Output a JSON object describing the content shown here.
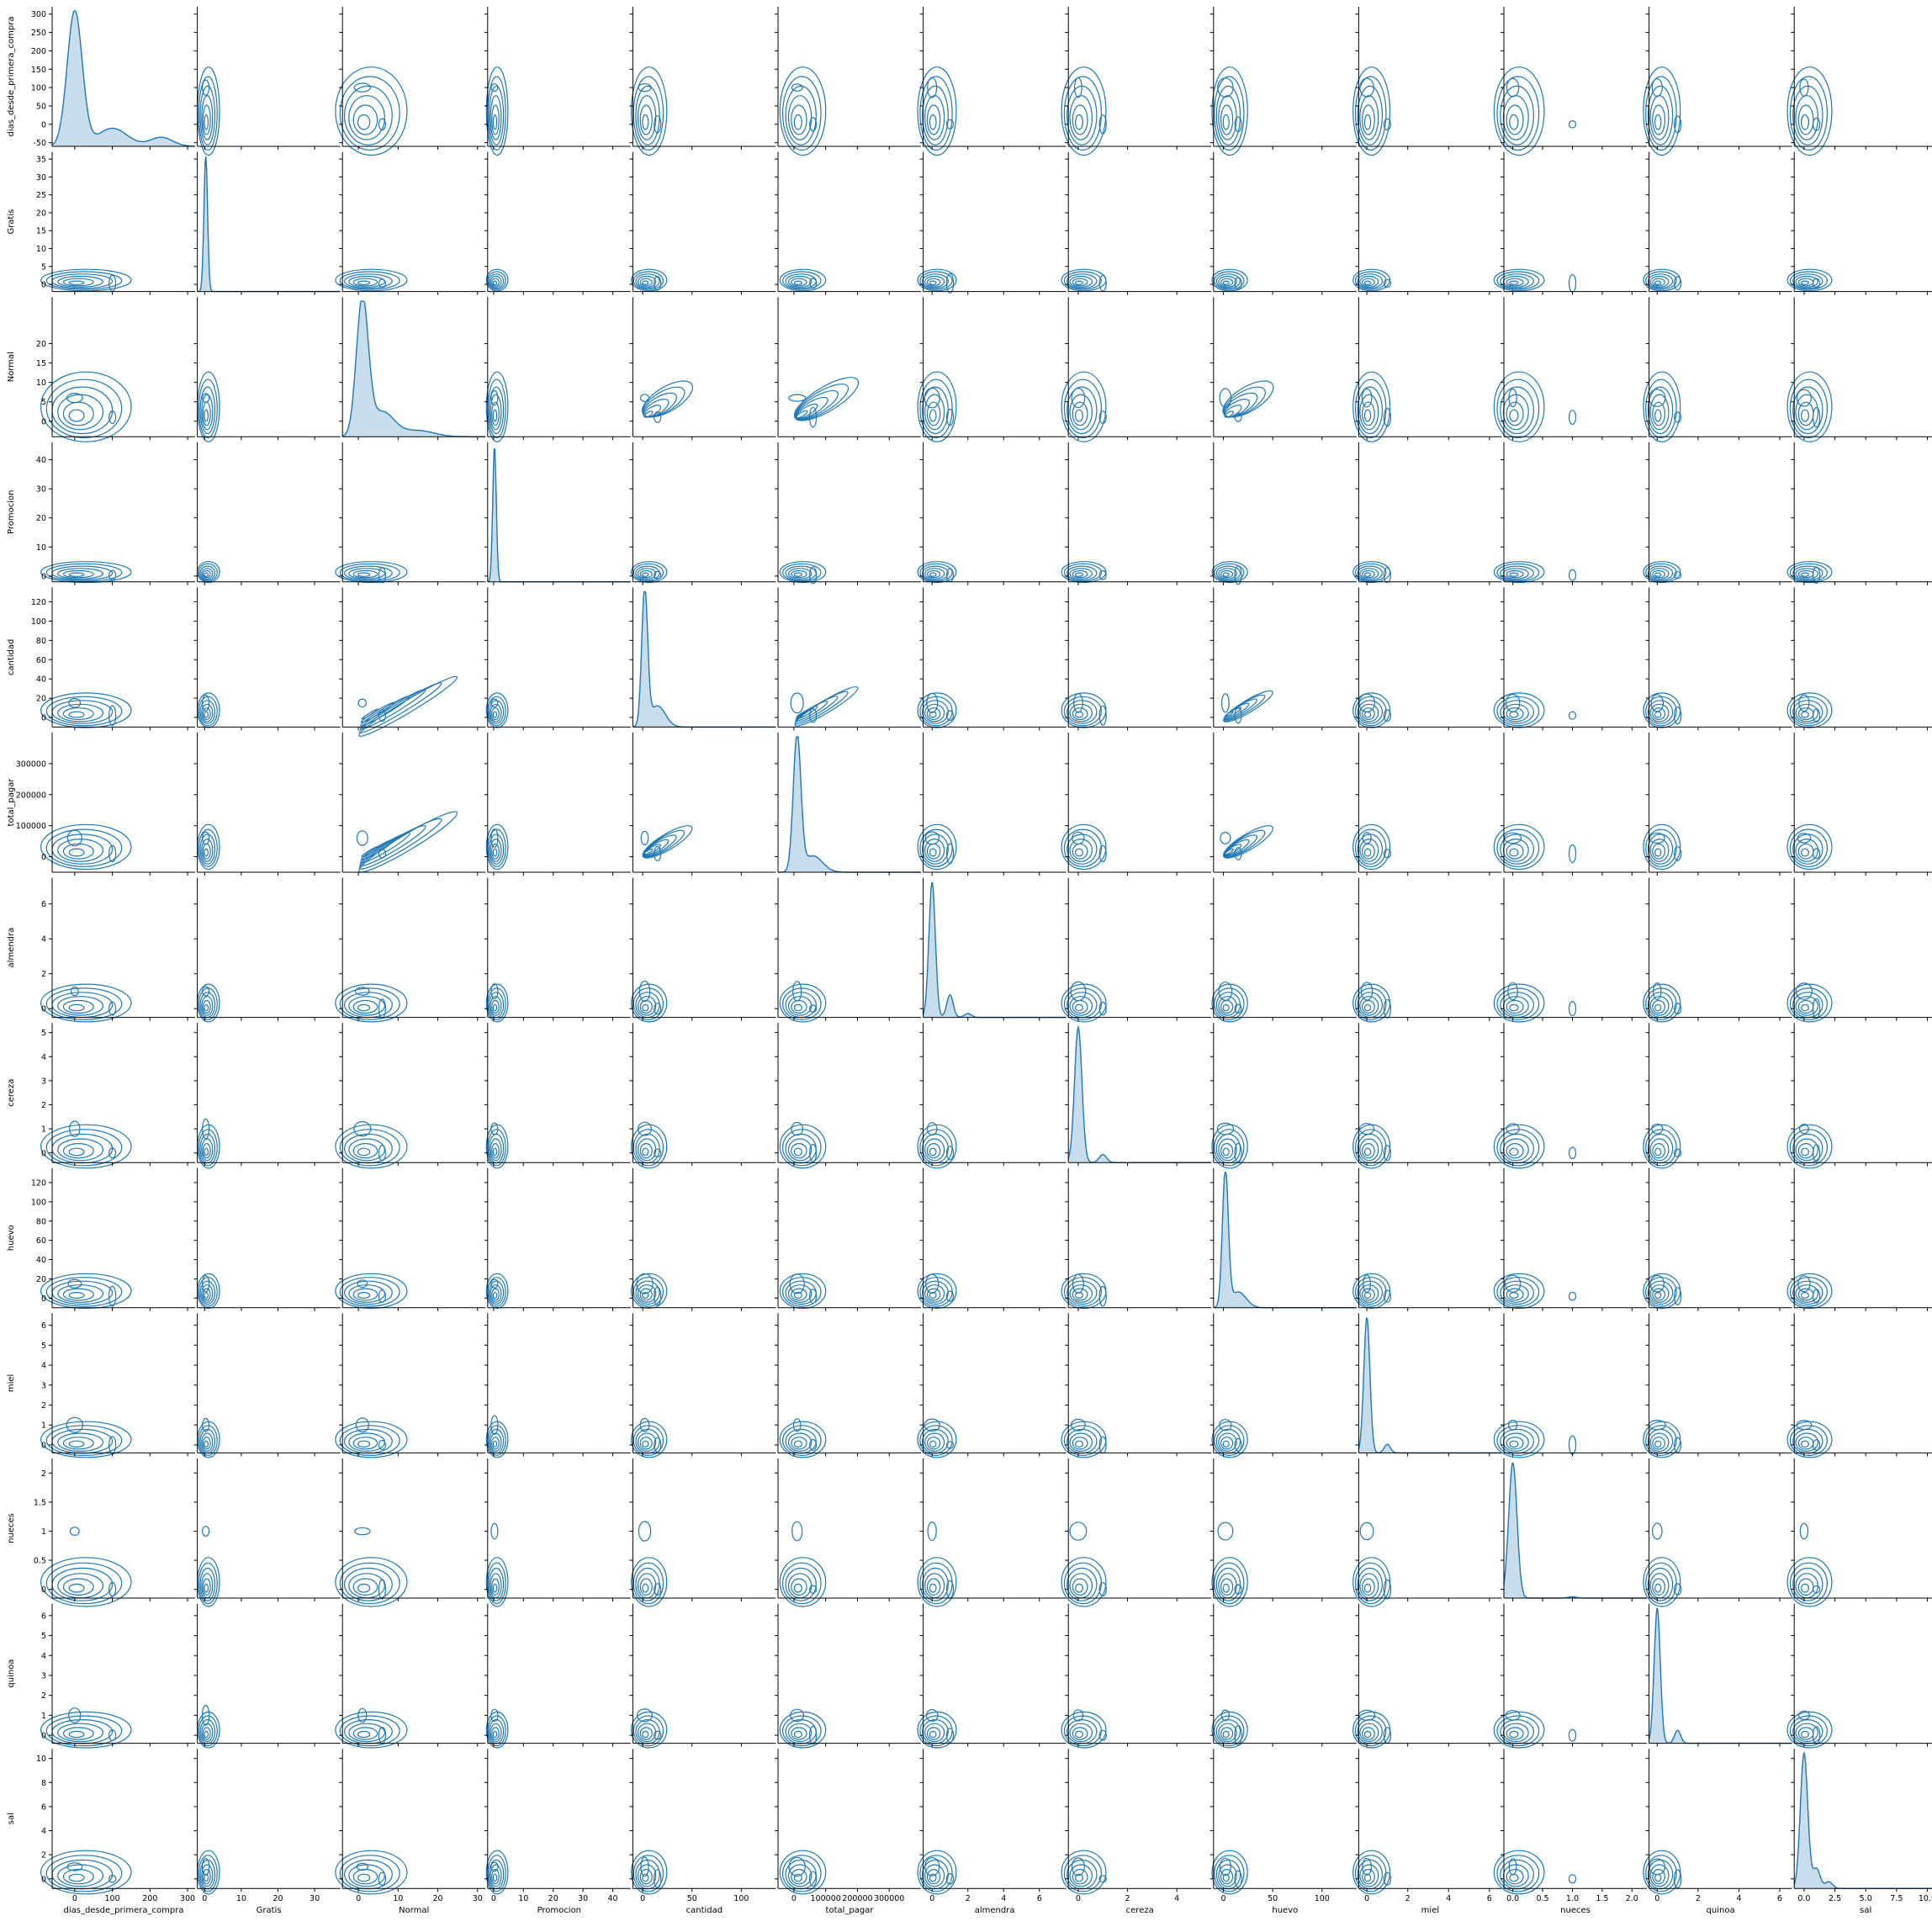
{
  "chart_data": {
    "type": "pairplot-kde",
    "color": "#1f77b4",
    "variables": [
      {
        "name": "dias_desde_primera_compra",
        "range": [
          -60,
          320
        ],
        "ticks": [
          -50,
          0,
          50,
          100,
          150,
          200,
          250,
          300
        ],
        "xticks": [
          0,
          100,
          200,
          300
        ],
        "kde": {
          "peak_x": 5,
          "peak_y": 300,
          "bumps": [
            [
              0,
              300,
              20
            ],
            [
              100,
              40,
              40
            ],
            [
              230,
              20,
              30
            ]
          ]
        }
      },
      {
        "name": "Gratis",
        "range": [
          -2,
          37
        ],
        "ticks": [
          0,
          5,
          10,
          15,
          20,
          25,
          30,
          35
        ],
        "xticks": [
          0,
          10,
          20,
          30
        ],
        "kde": {
          "peak_x": 0.3,
          "peak_y": 35,
          "bumps": [
            [
              0.3,
              35,
              0.5
            ]
          ]
        }
      },
      {
        "name": "Normal",
        "range": [
          -4,
          32
        ],
        "ticks": [
          0,
          5,
          10,
          15,
          20
        ],
        "xticks": [
          0,
          10,
          20,
          30
        ],
        "kde": {
          "peak_x": 1,
          "peak_y": 22,
          "bumps": [
            [
              1,
              22,
              1.5
            ],
            [
              6,
              4,
              3
            ],
            [
              15,
              1,
              4
            ]
          ]
        }
      },
      {
        "name": "Promocion",
        "range": [
          -2,
          46
        ],
        "ticks": [
          0,
          10,
          20,
          30,
          40
        ],
        "xticks": [
          0,
          10,
          20,
          30,
          40
        ],
        "kde": {
          "peak_x": 0.3,
          "peak_y": 42,
          "bumps": [
            [
              0.3,
              42,
              0.6
            ]
          ]
        }
      },
      {
        "name": "cantidad",
        "range": [
          -10,
          135
        ],
        "ticks": [
          0,
          20,
          40,
          60,
          80,
          100,
          120
        ],
        "xticks": [
          0,
          50,
          100
        ],
        "kde": {
          "peak_x": 2,
          "peak_y": 128,
          "bumps": [
            [
              2,
              128,
              3
            ],
            [
              15,
              20,
              8
            ]
          ]
        }
      },
      {
        "name": "total_pagar",
        "range": [
          -50000,
          400000
        ],
        "ticks": [
          0,
          100000,
          200000,
          300000
        ],
        "xticks": [
          0,
          100000,
          200000,
          300000
        ],
        "kde": {
          "peak_x": 10000,
          "peak_y": 330000,
          "bumps": [
            [
              10000,
              330000,
              12000
            ],
            [
              60000,
              40000,
              30000
            ]
          ]
        }
      },
      {
        "name": "almendra",
        "range": [
          -0.5,
          7.5
        ],
        "ticks": [
          0,
          2,
          4,
          6
        ],
        "xticks": [
          0,
          2,
          4,
          6
        ],
        "kde": {
          "peak_x": 0,
          "peak_y": 7.2,
          "bumps": [
            [
              0,
              7.2,
              0.18
            ],
            [
              1,
              1.2,
              0.18
            ],
            [
              2,
              0.2,
              0.2
            ]
          ]
        }
      },
      {
        "name": "cereza",
        "range": [
          -0.4,
          5.4
        ],
        "ticks": [
          0,
          1,
          2,
          3,
          4,
          5
        ],
        "xticks": [
          0,
          2,
          4
        ],
        "kde": {
          "peak_x": 0,
          "peak_y": 5.1,
          "bumps": [
            [
              0,
              5.1,
              0.15
            ],
            [
              1,
              0.3,
              0.15
            ]
          ]
        }
      },
      {
        "name": "huevo",
        "range": [
          -10,
          135
        ],
        "ticks": [
          0,
          20,
          40,
          60,
          80,
          100,
          120
        ],
        "xticks": [
          0,
          50,
          100
        ],
        "kde": {
          "peak_x": 2,
          "peak_y": 128,
          "bumps": [
            [
              2,
              128,
              3
            ],
            [
              15,
              15,
              8
            ]
          ]
        }
      },
      {
        "name": "miel",
        "range": [
          -0.4,
          6.6
        ],
        "ticks": [
          0,
          1,
          2,
          3,
          4,
          5,
          6
        ],
        "xticks": [
          0,
          2,
          4,
          6
        ],
        "kde": {
          "peak_x": 0,
          "peak_y": 6.2,
          "bumps": [
            [
              0,
              6.2,
              0.15
            ],
            [
              1,
              0.4,
              0.15
            ]
          ]
        }
      },
      {
        "name": "nueces",
        "range": [
          -0.15,
          2.25
        ],
        "ticks": [
          0.0,
          0.5,
          1.0,
          1.5,
          2.0
        ],
        "xticks": [
          0.0,
          0.5,
          1.0,
          1.5,
          2.0
        ],
        "kde": {
          "peak_x": 0,
          "peak_y": 2.1,
          "bumps": [
            [
              0,
              2.1,
              0.07
            ],
            [
              1,
              0.02,
              0.07
            ]
          ]
        }
      },
      {
        "name": "quinoa",
        "range": [
          -0.4,
          6.6
        ],
        "ticks": [
          0,
          1,
          2,
          3,
          4,
          5,
          6
        ],
        "xticks": [
          0,
          2,
          4,
          6
        ],
        "kde": {
          "peak_x": 0,
          "peak_y": 6.3,
          "bumps": [
            [
              0,
              6.3,
              0.15
            ],
            [
              1,
              0.6,
              0.15
            ]
          ]
        }
      },
      {
        "name": "sal",
        "range": [
          -0.8,
          10.8
        ],
        "ticks": [
          0,
          2,
          4,
          6,
          8,
          10
        ],
        "xticks": [
          0.0,
          2.5,
          5.0,
          7.5,
          10.0
        ],
        "kde": {
          "peak_x": 0,
          "peak_y": 10.2,
          "bumps": [
            [
              0,
              10.2,
              0.3
            ],
            [
              1,
              1.5,
              0.3
            ],
            [
              2,
              0.5,
              0.3
            ]
          ]
        }
      }
    ]
  }
}
